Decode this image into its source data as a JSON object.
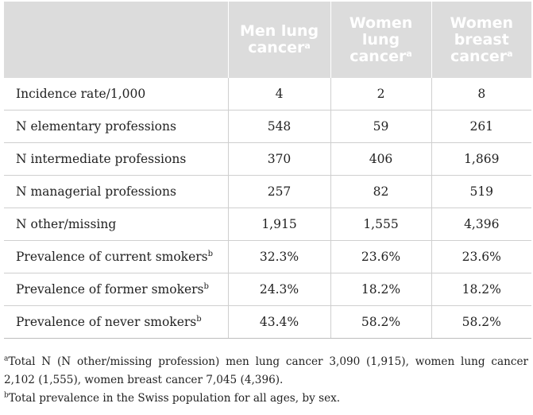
{
  "table": {
    "headers": [
      {
        "text": "",
        "sup": ""
      },
      {
        "text": "Men lung cancer",
        "sup": "a"
      },
      {
        "text": "Women lung cancer",
        "sup": "a"
      },
      {
        "text": "Women breast cancer",
        "sup": "a"
      }
    ],
    "rows": [
      {
        "label": "Incidence rate/1,000",
        "sup": "",
        "values": [
          "4",
          "2",
          "8"
        ]
      },
      {
        "label": "N elementary professions",
        "sup": "",
        "values": [
          "548",
          "59",
          "261"
        ]
      },
      {
        "label": "N intermediate professions",
        "sup": "",
        "values": [
          "370",
          "406",
          "1,869"
        ]
      },
      {
        "label": "N managerial professions",
        "sup": "",
        "values": [
          "257",
          "82",
          "519"
        ]
      },
      {
        "label": "N other/missing",
        "sup": "",
        "values": [
          "1,915",
          "1,555",
          "4,396"
        ]
      },
      {
        "label": "Prevalence of current smokers",
        "sup": "b",
        "values": [
          "32.3%",
          "23.6%",
          "23.6%"
        ]
      },
      {
        "label": "Prevalence of former smokers",
        "sup": "b",
        "values": [
          "24.3%",
          "18.2%",
          "18.2%"
        ]
      },
      {
        "label": "Prevalence of never smokers",
        "sup": "b",
        "values": [
          "43.4%",
          "58.2%",
          "58.2%"
        ]
      }
    ]
  },
  "footnotes": [
    {
      "mark": "a",
      "text": "Total N (N other/missing profession) men lung cancer 3,090 (1,915), women lung cancer 2,102 (1,555), women breast cancer 7,045 (4,396)."
    },
    {
      "mark": "b",
      "text": "Total prevalence in the Swiss population for all ages, by sex."
    }
  ],
  "colors": {
    "header_bg": "#dcdcdc",
    "header_text": "#ffffff",
    "grid": "#cfcfcf",
    "body_text": "#222222"
  }
}
